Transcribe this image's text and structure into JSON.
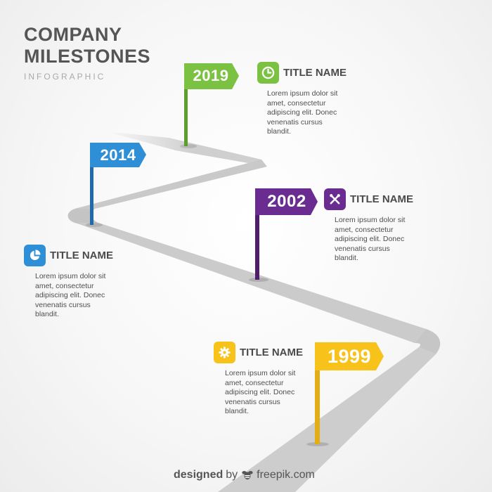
{
  "header": {
    "title_line1": "COMPANY",
    "title_line2": "MILESTONES",
    "subtitle": "INFOGRAPHIC"
  },
  "milestones": [
    {
      "year": "2019",
      "color": "#7cc242",
      "color_dark": "#5a9a2a",
      "icon": "clock-icon",
      "title": "TITLE NAME",
      "text": "Lorem ipsum dolor sit\namet, consectetur\nadipiscing elit. Donec\nvenenatis cursus\nblandit."
    },
    {
      "year": "2014",
      "color": "#2f8fd6",
      "color_dark": "#1e6aab",
      "icon": "pie-chart-icon",
      "title": "TITLE NAME",
      "text": "Lorem ipsum dolor sit\namet, consectetur\nadipiscing elit. Donec\nvenenatis cursus\nblandit."
    },
    {
      "year": "2002",
      "color": "#6a2c91",
      "color_dark": "#4e1e6d",
      "icon": "tools-icon",
      "title": "TITLE NAME",
      "text": "Lorem ipsum dolor sit\namet, consectetur\nadipiscing elit. Donec\nvenenatis cursus\nblandit."
    },
    {
      "year": "1999",
      "color": "#f7c21a",
      "color_dark": "#d9a30f",
      "icon": "gear-icon",
      "title": "TITLE NAME",
      "text": "Lorem ipsum dolor sit\namet, consectetur\nadipiscing elit. Donec\nvenenatis cursus\nblandit."
    }
  ],
  "credit": {
    "designed": "designed",
    "by": "by",
    "brand": "freepik.com",
    "logo_icon": "freepik-bee-logo-icon"
  },
  "colors": {
    "road": "#c9c9c9",
    "road_edge": "#b5b5b5",
    "heading_text": "#555555"
  }
}
